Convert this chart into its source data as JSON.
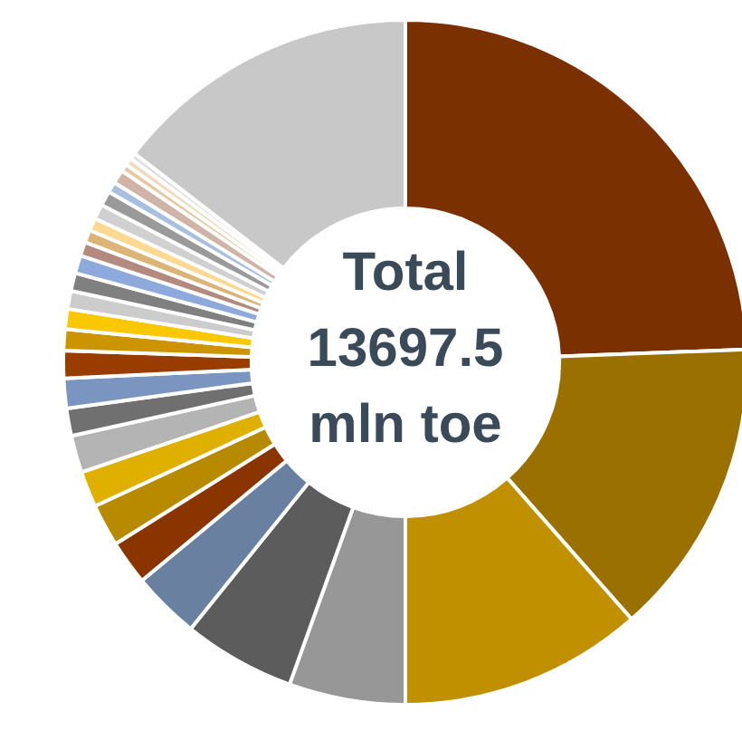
{
  "chart_data": {
    "type": "donut",
    "title": "Total 13697.5 mln toe",
    "categories": [
      null,
      null,
      null,
      null,
      null,
      null,
      null,
      null,
      null,
      null,
      null,
      null,
      null,
      null,
      null,
      null,
      null,
      null,
      null,
      null,
      null,
      null,
      null,
      null,
      null,
      null,
      null,
      null,
      null
    ],
    "values": [
      24.4,
      14.1,
      11.5,
      5.5,
      5.3,
      3.2,
      2.1,
      2.0,
      1.7,
      1.75,
      1.3,
      1.4,
      1.3,
      1.0,
      0.95,
      0.85,
      0.85,
      0.85,
      0.65,
      0.6,
      0.6,
      0.7,
      0.7,
      0.5,
      0.65,
      0.35,
      0.35,
      0.3,
      14.55
    ],
    "colors": [
      "#7a3000",
      "#9a7000",
      "#c09000",
      "#979797",
      "#5c5c5c",
      "#6a80a0",
      "#8a3500",
      "#b88a00",
      "#e0b000",
      "#b4b4b4",
      "#707070",
      "#7a96c0",
      "#983c00",
      "#cc9400",
      "#fac800",
      "#cccccc",
      "#808080",
      "#8eaadc",
      "#b48a80",
      "#dcb478",
      "#fcd890",
      "#d0d0d0",
      "#9a9a9a",
      "#a8c0e0",
      "#d0b4a8",
      "#e8c8a0",
      "#f0dcc0",
      "#e0e0e0",
      "#c8c8c8"
    ],
    "legend": false
  }
}
